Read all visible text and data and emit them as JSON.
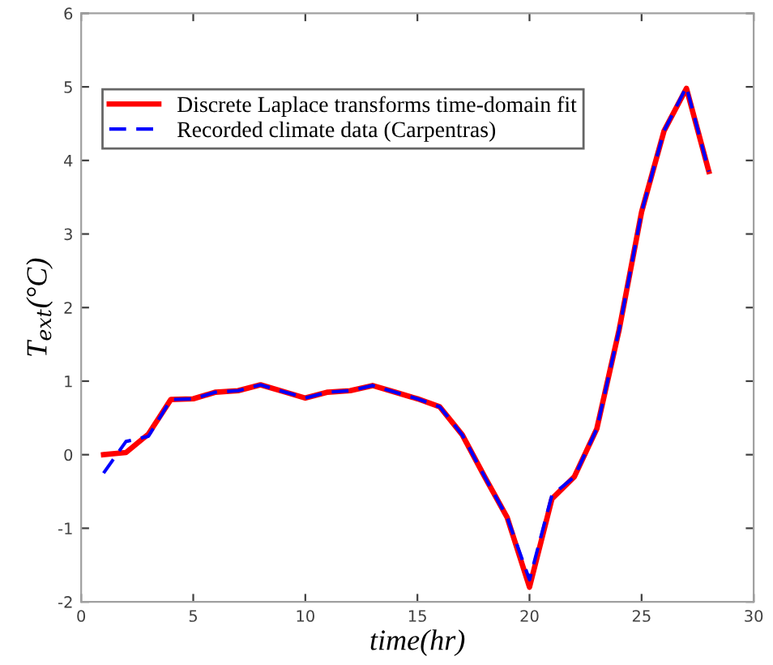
{
  "chart_data": {
    "type": "line",
    "xlabel": "time(hr)",
    "ylabel": "T$_{ext}$(°C)",
    "x": [
      1,
      2,
      3,
      4,
      5,
      6,
      7,
      8,
      9,
      10,
      11,
      12,
      13,
      14,
      15,
      16,
      17,
      18,
      19,
      20,
      21,
      22,
      23,
      24,
      25,
      26,
      27,
      28
    ],
    "series": [
      {
        "name": "Discrete Laplace transforms time-domain fit",
        "color": "#ff0000",
        "line_style": "solid",
        "values": [
          0,
          0.03,
          0.28,
          0.75,
          0.76,
          0.85,
          0.87,
          0.95,
          0.86,
          0.77,
          0.85,
          0.87,
          0.94,
          0.85,
          0.76,
          0.65,
          0.27,
          -0.3,
          -0.85,
          -1.8,
          -0.6,
          -0.3,
          0.35,
          1.7,
          3.3,
          4.4,
          4.98,
          3.85
        ]
      },
      {
        "name": "Recorded climate data (Carpentras)",
        "color": "#0000ff",
        "line_style": "dashed",
        "values": [
          -0.25,
          0.18,
          0.25,
          0.75,
          0.76,
          0.85,
          0.87,
          0.95,
          0.86,
          0.77,
          0.85,
          0.87,
          0.94,
          0.85,
          0.76,
          0.65,
          0.27,
          -0.3,
          -0.85,
          -1.7,
          -0.55,
          -0.3,
          0.35,
          1.7,
          3.3,
          4.4,
          5.0,
          3.85
        ]
      }
    ],
    "xlim": [
      0,
      30
    ],
    "ylim": [
      -2,
      6
    ],
    "xticks": [
      0,
      5,
      10,
      15,
      20,
      25,
      30
    ],
    "yticks": [
      -2,
      -1,
      0,
      1,
      2,
      3,
      4,
      5,
      6
    ],
    "grid": false,
    "legend": "top left",
    "marker": "none"
  }
}
